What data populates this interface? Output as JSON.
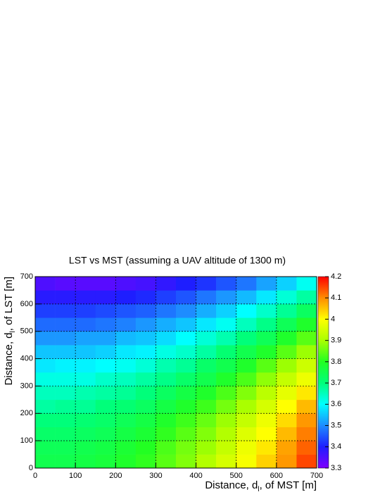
{
  "chart_data": {
    "type": "heatmap",
    "title": "LST vs MST (assuming a UAV altitude of 1300 m)",
    "x_label": [
      "Distance, d",
      "l",
      ", of MST [m]"
    ],
    "y_label": [
      "Distance, d",
      "l",
      ", of LST [m]"
    ],
    "xbins": [
      0,
      50,
      100,
      150,
      200,
      250,
      300,
      350,
      400,
      450,
      500,
      550,
      600,
      650,
      700
    ],
    "ybins": [
      0,
      50,
      100,
      150,
      200,
      250,
      300,
      350,
      400,
      450,
      500,
      550,
      600,
      650,
      700
    ],
    "xlim": [
      0,
      700
    ],
    "ylim": [
      0,
      700
    ],
    "xticks": [
      0,
      100,
      200,
      300,
      400,
      500,
      600,
      700
    ],
    "yticks": [
      0,
      100,
      200,
      300,
      400,
      500,
      600,
      700
    ],
    "zlim": [
      3.3,
      4.2
    ],
    "zticks": [
      3.3,
      3.4,
      3.5,
      3.6,
      3.7,
      3.8,
      3.9,
      4,
      4.1,
      4.2
    ],
    "grid": true,
    "colorscale": [
      "#7f00ff",
      "#1e1eff",
      "#1e8cff",
      "#00ffff",
      "#00ff7a",
      "#22ff22",
      "#aaff00",
      "#ffff00",
      "#ff8c00",
      "#ff0000"
    ],
    "z": [
      [
        3.75,
        3.75,
        3.76,
        3.77,
        3.79,
        3.81,
        3.84,
        3.87,
        3.91,
        3.95,
        3.99,
        4.04,
        4.09,
        4.15
      ],
      [
        3.74,
        3.74,
        3.75,
        3.76,
        3.78,
        3.8,
        3.83,
        3.86,
        3.89,
        3.93,
        3.98,
        4.02,
        4.08,
        4.13
      ],
      [
        3.72,
        3.72,
        3.73,
        3.74,
        3.76,
        3.78,
        3.81,
        3.84,
        3.87,
        3.91,
        3.96,
        4.0,
        4.06,
        4.11
      ],
      [
        3.7,
        3.7,
        3.71,
        3.72,
        3.74,
        3.76,
        3.79,
        3.82,
        3.85,
        3.89,
        3.93,
        3.98,
        4.03,
        4.09
      ],
      [
        3.67,
        3.68,
        3.68,
        3.7,
        3.71,
        3.73,
        3.76,
        3.79,
        3.82,
        3.86,
        3.9,
        3.95,
        4.0,
        4.06
      ],
      [
        3.65,
        3.65,
        3.66,
        3.67,
        3.68,
        3.7,
        3.73,
        3.76,
        3.79,
        3.83,
        3.87,
        3.92,
        3.97,
        4.02
      ],
      [
        3.62,
        3.62,
        3.62,
        3.64,
        3.65,
        3.67,
        3.69,
        3.72,
        3.75,
        3.79,
        3.83,
        3.88,
        3.93,
        3.98
      ],
      [
        3.58,
        3.59,
        3.59,
        3.6,
        3.61,
        3.63,
        3.66,
        3.68,
        3.72,
        3.75,
        3.79,
        3.84,
        3.89,
        3.94
      ],
      [
        3.55,
        3.55,
        3.55,
        3.56,
        3.58,
        3.59,
        3.62,
        3.64,
        3.67,
        3.71,
        3.75,
        3.79,
        3.84,
        3.89
      ],
      [
        3.51,
        3.51,
        3.52,
        3.52,
        3.54,
        3.55,
        3.57,
        3.6,
        3.63,
        3.66,
        3.7,
        3.74,
        3.79,
        3.84
      ],
      [
        3.47,
        3.47,
        3.47,
        3.48,
        3.49,
        3.51,
        3.53,
        3.55,
        3.58,
        3.61,
        3.65,
        3.69,
        3.74,
        3.79
      ],
      [
        3.43,
        3.43,
        3.43,
        3.44,
        3.45,
        3.46,
        3.48,
        3.5,
        3.53,
        3.56,
        3.6,
        3.64,
        3.68,
        3.73
      ],
      [
        3.39,
        3.39,
        3.39,
        3.39,
        3.4,
        3.41,
        3.43,
        3.45,
        3.48,
        3.51,
        3.54,
        3.58,
        3.63,
        3.67
      ],
      [
        3.35,
        3.34,
        3.34,
        3.34,
        3.35,
        3.36,
        3.38,
        3.4,
        3.42,
        3.45,
        3.48,
        3.52,
        3.56,
        3.61
      ]
    ]
  }
}
